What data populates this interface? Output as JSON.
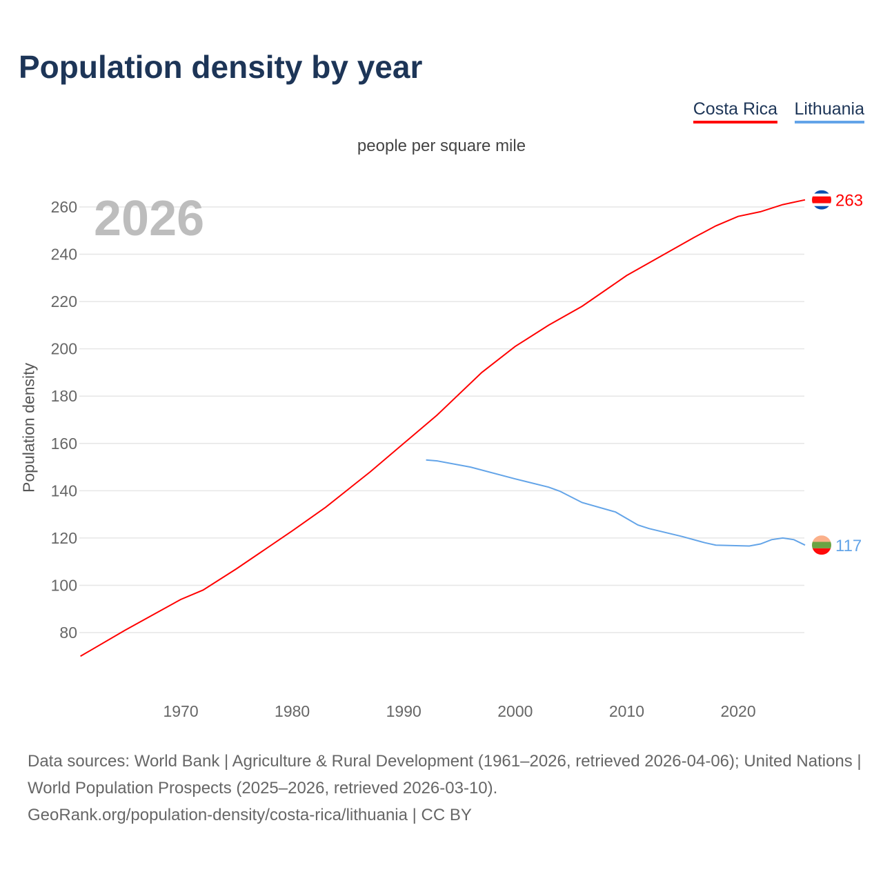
{
  "title": "Population density by year",
  "legend": [
    {
      "name": "Costa Rica",
      "color": "#ff0000"
    },
    {
      "name": "Lithuania",
      "color": "#63a4e8"
    }
  ],
  "footer": {
    "sources": "Data sources: World Bank | Agriculture & Rural Development (1961–2026, retrieved 2026-04-06); United Nations | World Population Prospects (2025–2026, retrieved 2026-03-10).",
    "link": "GeoRank.org/population-density/costa-rica/lithuania | CC BY"
  },
  "chart_data": {
    "type": "line",
    "title": "Population density by year",
    "subtitle": "people per square mile",
    "xlabel": "",
    "ylabel": "Population density",
    "year_label": "2026",
    "xlim": [
      1961,
      2026
    ],
    "ylim": [
      80,
      260
    ],
    "xticks": [
      1970,
      1980,
      1990,
      2000,
      2010,
      2020
    ],
    "yticks": [
      80,
      100,
      120,
      140,
      160,
      180,
      200,
      220,
      240,
      260
    ],
    "grid": true,
    "legend_position": "top-right",
    "series": [
      {
        "name": "Costa Rica",
        "color": "#ff0000",
        "end_label": "263",
        "x": [
          1961,
          1965,
          1970,
          1972,
          1975,
          1980,
          1983,
          1987,
          1990,
          1993,
          1997,
          2000,
          2003,
          2006,
          2010,
          2013,
          2016,
          2018,
          2020,
          2022,
          2024,
          2026
        ],
        "y": [
          70,
          81,
          94,
          98,
          107,
          123,
          133,
          148,
          160,
          172,
          190,
          201,
          210,
          218,
          231,
          239,
          247,
          252,
          256,
          258,
          261,
          263
        ]
      },
      {
        "name": "Lithuania",
        "color": "#63a4e8",
        "end_label": "117",
        "x": [
          1992,
          1993,
          1996,
          2000,
          2003,
          2004,
          2006,
          2009,
          2011,
          2012,
          2015,
          2017,
          2018,
          2021,
          2022,
          2023,
          2024,
          2025,
          2026
        ],
        "y": [
          153,
          152.6,
          150,
          145,
          141.5,
          139.8,
          135,
          131,
          125.5,
          124,
          120.6,
          118,
          117,
          116.6,
          117.5,
          119.3,
          120,
          119.3,
          117
        ]
      }
    ]
  }
}
